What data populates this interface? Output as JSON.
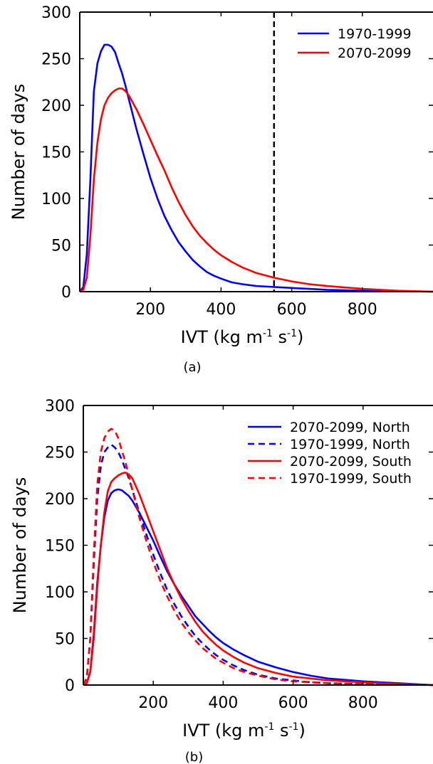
{
  "chart_data": [
    {
      "type": "line",
      "panel_label": "(a)",
      "xlabel_prefix": "IVT (kg m",
      "xlabel_sup1": "-1",
      "xlabel_mid": " s",
      "xlabel_sup2": "-1",
      "xlabel_suffix": ")",
      "ylabel": "Number of days",
      "xlim": [
        0,
        1000
      ],
      "ylim": [
        0,
        300
      ],
      "xticks": [
        200,
        400,
        600,
        800
      ],
      "yticks": [
        0,
        50,
        100,
        150,
        200,
        250,
        300
      ],
      "grid": false,
      "legend": "top-right",
      "reference_line": {
        "x": 550,
        "style": "dashed",
        "color": "#000000"
      },
      "series": [
        {
          "name": "1970-1999",
          "color": "#0000ff",
          "dash": "solid",
          "x": [
            0,
            10,
            20,
            30,
            40,
            50,
            60,
            70,
            80,
            90,
            100,
            110,
            120,
            130,
            140,
            160,
            180,
            200,
            220,
            240,
            260,
            280,
            300,
            320,
            340,
            360,
            380,
            400,
            430,
            460,
            500,
            550,
            600,
            650,
            700,
            800,
            900,
            1000
          ],
          "y": [
            0,
            5,
            40,
            120,
            215,
            245,
            258,
            265,
            265,
            263,
            257,
            245,
            234,
            220,
            205,
            175,
            148,
            122,
            100,
            81,
            66,
            53,
            43,
            34,
            27,
            21,
            17,
            14,
            10,
            8,
            6,
            5,
            4,
            3,
            2,
            1,
            0.5,
            0
          ]
        },
        {
          "name": "2070-2099",
          "color": "#ff0000",
          "dash": "solid",
          "x": [
            0,
            10,
            20,
            30,
            40,
            50,
            60,
            70,
            80,
            90,
            100,
            110,
            120,
            130,
            140,
            160,
            180,
            200,
            220,
            240,
            260,
            280,
            300,
            320,
            340,
            360,
            380,
            400,
            430,
            460,
            500,
            550,
            600,
            650,
            700,
            800,
            900,
            1000
          ],
          "y": [
            0,
            2,
            15,
            60,
            120,
            160,
            185,
            200,
            208,
            213,
            216,
            218,
            218,
            215,
            210,
            196,
            180,
            163,
            146,
            130,
            112,
            96,
            82,
            70,
            60,
            52,
            45,
            39,
            32,
            26,
            20,
            15,
            11,
            8,
            6,
            3,
            1,
            0
          ]
        }
      ]
    },
    {
      "type": "line",
      "panel_label": "(b)",
      "xlabel_prefix": "IVT (kg m",
      "xlabel_sup1": "-1",
      "xlabel_mid": " s",
      "xlabel_sup2": "-1",
      "xlabel_suffix": ")",
      "ylabel": "Number of days",
      "xlim": [
        0,
        1000
      ],
      "ylim": [
        0,
        300
      ],
      "xticks": [
        200,
        400,
        600,
        800
      ],
      "yticks": [
        0,
        50,
        100,
        150,
        200,
        250,
        300
      ],
      "grid": false,
      "legend": "top-right",
      "series": [
        {
          "name": "2070-2099, North",
          "color": "#0000ff",
          "dash": "solid",
          "x": [
            0,
            10,
            20,
            30,
            40,
            50,
            60,
            70,
            80,
            90,
            100,
            110,
            120,
            130,
            140,
            160,
            180,
            200,
            220,
            240,
            260,
            280,
            300,
            320,
            340,
            360,
            380,
            400,
            430,
            460,
            500,
            550,
            600,
            650,
            700,
            800,
            900,
            1000
          ],
          "y": [
            0,
            2,
            15,
            55,
            110,
            150,
            180,
            198,
            206,
            209,
            210,
            209,
            206,
            203,
            198,
            185,
            170,
            155,
            138,
            122,
            108,
            96,
            85,
            74,
            66,
            58,
            51,
            45,
            38,
            32,
            25,
            19,
            14,
            10,
            7,
            4,
            2,
            0
          ]
        },
        {
          "name": "1970-1999, North",
          "color": "#0000ff",
          "dash": "dashed",
          "x": [
            0,
            10,
            20,
            30,
            40,
            50,
            60,
            70,
            80,
            90,
            100,
            110,
            120,
            130,
            140,
            160,
            180,
            200,
            220,
            240,
            260,
            280,
            300,
            320,
            340,
            360,
            380,
            400,
            430,
            460,
            500,
            550,
            600,
            650,
            700,
            800,
            900,
            1000
          ],
          "y": [
            0,
            8,
            50,
            130,
            200,
            235,
            250,
            255,
            258,
            255,
            250,
            242,
            232,
            222,
            210,
            185,
            162,
            140,
            120,
            102,
            87,
            74,
            63,
            53,
            45,
            38,
            32,
            27,
            21,
            16,
            11,
            7,
            5,
            3,
            2,
            1,
            0.5,
            0
          ]
        },
        {
          "name": "2070-2099, South",
          "color": "#ff0000",
          "dash": "solid",
          "x": [
            0,
            10,
            20,
            30,
            40,
            50,
            60,
            70,
            80,
            90,
            100,
            110,
            120,
            130,
            140,
            160,
            180,
            200,
            220,
            240,
            260,
            280,
            300,
            320,
            340,
            360,
            380,
            400,
            430,
            460,
            500,
            550,
            600,
            650,
            700,
            800,
            900,
            1000
          ],
          "y": [
            0,
            2,
            14,
            50,
            105,
            150,
            185,
            208,
            218,
            222,
            225,
            227,
            228,
            226,
            222,
            205,
            185,
            165,
            145,
            125,
            108,
            93,
            80,
            68,
            58,
            50,
            43,
            37,
            30,
            24,
            18,
            13,
            9,
            7,
            5,
            3,
            1,
            0
          ]
        },
        {
          "name": "1970-1999, South",
          "color": "#ff0000",
          "dash": "dashed",
          "x": [
            0,
            10,
            20,
            30,
            40,
            50,
            60,
            70,
            80,
            90,
            100,
            110,
            120,
            130,
            140,
            160,
            180,
            200,
            220,
            240,
            260,
            280,
            300,
            320,
            340,
            360,
            380,
            400,
            430,
            460,
            500,
            550,
            600,
            650,
            700,
            800,
            900,
            1000
          ],
          "y": [
            0,
            8,
            50,
            140,
            215,
            250,
            265,
            272,
            275,
            273,
            265,
            252,
            240,
            225,
            210,
            180,
            155,
            132,
            112,
            95,
            80,
            67,
            57,
            48,
            40,
            34,
            28,
            24,
            18,
            14,
            10,
            6,
            4,
            3,
            2,
            1,
            0.5,
            0
          ]
        }
      ]
    }
  ]
}
